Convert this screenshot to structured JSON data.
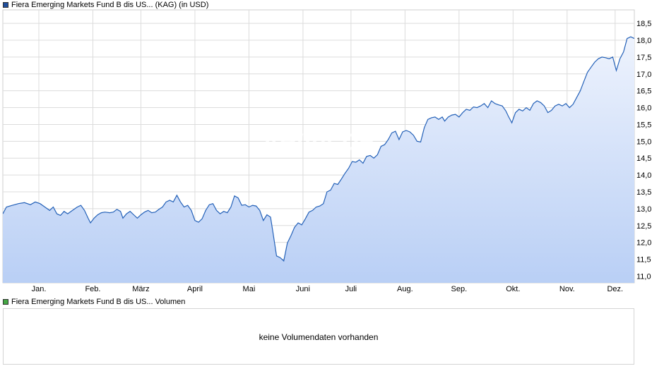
{
  "price_legend": {
    "label": "Fiera Emerging Markets Fund B dis US... (KAG) (in USD)",
    "color": "#1f4e9c"
  },
  "watermark": "ARIVA.DE",
  "volume_legend": {
    "label": "Fiera Emerging Markets Fund B dis US... Volumen",
    "color": "#45a845"
  },
  "volume_panel": {
    "message": "keine Volumendaten vorhanden"
  },
  "colors": {
    "line": "#2461b8",
    "fill_top": "#eef3fd",
    "fill_bottom": "#b9cff5",
    "grid": "#dcdcdc"
  },
  "chart_data": {
    "type": "area",
    "title": "Fiera Emerging Markets Fund B dis US... (KAG) (in USD)",
    "x_axis": {
      "tick_labels": [
        "Jan.",
        "Feb.",
        "März",
        "April",
        "Mai",
        "Juni",
        "Juli",
        "Aug.",
        "Sep.",
        "Okt.",
        "Nov.",
        "Dez."
      ],
      "tick_positions_week": [
        3,
        7.5,
        11.5,
        16,
        20.5,
        25,
        29,
        33.5,
        38,
        42.5,
        47,
        51
      ]
    },
    "y_axis": {
      "range": [
        10.8,
        18.9
      ],
      "ticks": [
        11.0,
        11.5,
        12.0,
        12.5,
        13.0,
        13.5,
        14.0,
        14.5,
        15.0,
        15.5,
        16.0,
        16.5,
        17.0,
        17.5,
        18.0,
        18.5
      ],
      "tick_labels": [
        "11,0",
        "11,5",
        "12,0",
        "12,5",
        "13,0",
        "13,5",
        "14,0",
        "14,5",
        "15,0",
        "15,5",
        "16,0",
        "16,5",
        "17,0",
        "17,5",
        "18,0",
        "18,5"
      ],
      "position": "right"
    },
    "x_range": [
      0,
      52.6
    ],
    "grid": true,
    "series": [
      {
        "values": [
          [
            0.0,
            12.85
          ],
          [
            0.3,
            13.05
          ],
          [
            0.8,
            13.1
          ],
          [
            1.3,
            13.15
          ],
          [
            1.8,
            13.18
          ],
          [
            2.3,
            13.12
          ],
          [
            2.7,
            13.2
          ],
          [
            3.1,
            13.15
          ],
          [
            3.5,
            13.05
          ],
          [
            3.9,
            12.95
          ],
          [
            4.2,
            13.05
          ],
          [
            4.5,
            12.85
          ],
          [
            4.8,
            12.8
          ],
          [
            5.1,
            12.92
          ],
          [
            5.4,
            12.85
          ],
          [
            5.8,
            12.95
          ],
          [
            6.2,
            13.05
          ],
          [
            6.5,
            13.1
          ],
          [
            6.8,
            12.95
          ],
          [
            7.1,
            12.72
          ],
          [
            7.3,
            12.58
          ],
          [
            7.6,
            12.72
          ],
          [
            7.9,
            12.82
          ],
          [
            8.2,
            12.88
          ],
          [
            8.5,
            12.9
          ],
          [
            8.9,
            12.88
          ],
          [
            9.2,
            12.9
          ],
          [
            9.5,
            12.98
          ],
          [
            9.8,
            12.92
          ],
          [
            10.0,
            12.72
          ],
          [
            10.3,
            12.85
          ],
          [
            10.6,
            12.92
          ],
          [
            10.9,
            12.82
          ],
          [
            11.2,
            12.72
          ],
          [
            11.5,
            12.82
          ],
          [
            11.8,
            12.9
          ],
          [
            12.1,
            12.95
          ],
          [
            12.4,
            12.88
          ],
          [
            12.7,
            12.9
          ],
          [
            13.0,
            12.98
          ],
          [
            13.3,
            13.05
          ],
          [
            13.6,
            13.2
          ],
          [
            13.9,
            13.25
          ],
          [
            14.2,
            13.2
          ],
          [
            14.5,
            13.4
          ],
          [
            14.8,
            13.2
          ],
          [
            15.1,
            13.05
          ],
          [
            15.4,
            13.1
          ],
          [
            15.7,
            12.95
          ],
          [
            16.0,
            12.65
          ],
          [
            16.3,
            12.6
          ],
          [
            16.6,
            12.7
          ],
          [
            16.9,
            12.95
          ],
          [
            17.2,
            13.12
          ],
          [
            17.5,
            13.15
          ],
          [
            17.8,
            12.95
          ],
          [
            18.1,
            12.85
          ],
          [
            18.4,
            12.92
          ],
          [
            18.7,
            12.88
          ],
          [
            19.0,
            13.05
          ],
          [
            19.3,
            13.38
          ],
          [
            19.6,
            13.32
          ],
          [
            19.9,
            13.1
          ],
          [
            20.2,
            13.12
          ],
          [
            20.5,
            13.05
          ],
          [
            20.8,
            13.1
          ],
          [
            21.1,
            13.08
          ],
          [
            21.4,
            12.95
          ],
          [
            21.7,
            12.65
          ],
          [
            22.0,
            12.82
          ],
          [
            22.3,
            12.75
          ],
          [
            22.5,
            12.3
          ],
          [
            22.8,
            11.6
          ],
          [
            23.1,
            11.55
          ],
          [
            23.4,
            11.45
          ],
          [
            23.7,
            11.98
          ],
          [
            24.0,
            12.2
          ],
          [
            24.3,
            12.45
          ],
          [
            24.6,
            12.58
          ],
          [
            24.9,
            12.52
          ],
          [
            25.2,
            12.7
          ],
          [
            25.5,
            12.9
          ],
          [
            25.8,
            12.95
          ],
          [
            26.1,
            13.05
          ],
          [
            26.4,
            13.08
          ],
          [
            26.7,
            13.15
          ],
          [
            27.0,
            13.5
          ],
          [
            27.3,
            13.55
          ],
          [
            27.6,
            13.75
          ],
          [
            27.9,
            13.72
          ],
          [
            28.2,
            13.88
          ],
          [
            28.5,
            14.05
          ],
          [
            28.8,
            14.2
          ],
          [
            29.1,
            14.4
          ],
          [
            29.4,
            14.38
          ],
          [
            29.7,
            14.45
          ],
          [
            30.0,
            14.35
          ],
          [
            30.3,
            14.55
          ],
          [
            30.6,
            14.58
          ],
          [
            30.9,
            14.5
          ],
          [
            31.2,
            14.6
          ],
          [
            31.5,
            14.85
          ],
          [
            31.8,
            14.9
          ],
          [
            32.1,
            15.05
          ],
          [
            32.4,
            15.25
          ],
          [
            32.7,
            15.3
          ],
          [
            33.0,
            15.05
          ],
          [
            33.3,
            15.28
          ],
          [
            33.6,
            15.32
          ],
          [
            33.9,
            15.28
          ],
          [
            34.2,
            15.18
          ],
          [
            34.5,
            15.0
          ],
          [
            34.8,
            14.98
          ],
          [
            35.1,
            15.4
          ],
          [
            35.4,
            15.65
          ],
          [
            35.7,
            15.7
          ],
          [
            36.0,
            15.72
          ],
          [
            36.3,
            15.65
          ],
          [
            36.6,
            15.72
          ],
          [
            36.8,
            15.6
          ],
          [
            37.1,
            15.72
          ],
          [
            37.4,
            15.78
          ],
          [
            37.7,
            15.8
          ],
          [
            38.0,
            15.72
          ],
          [
            38.3,
            15.85
          ],
          [
            38.6,
            15.95
          ],
          [
            38.9,
            15.92
          ],
          [
            39.2,
            16.02
          ],
          [
            39.5,
            16.0
          ],
          [
            39.8,
            16.05
          ],
          [
            40.1,
            16.12
          ],
          [
            40.4,
            16.0
          ],
          [
            40.7,
            16.2
          ],
          [
            41.0,
            16.12
          ],
          [
            41.3,
            16.08
          ],
          [
            41.6,
            16.05
          ],
          [
            41.9,
            15.9
          ],
          [
            42.1,
            15.75
          ],
          [
            42.4,
            15.55
          ],
          [
            42.7,
            15.85
          ],
          [
            43.0,
            15.95
          ],
          [
            43.3,
            15.9
          ],
          [
            43.6,
            16.0
          ],
          [
            43.9,
            15.92
          ],
          [
            44.2,
            16.12
          ],
          [
            44.5,
            16.2
          ],
          [
            44.8,
            16.15
          ],
          [
            45.1,
            16.05
          ],
          [
            45.4,
            15.85
          ],
          [
            45.7,
            15.92
          ],
          [
            46.0,
            16.05
          ],
          [
            46.3,
            16.1
          ],
          [
            46.6,
            16.05
          ],
          [
            46.9,
            16.12
          ],
          [
            47.2,
            16.0
          ],
          [
            47.5,
            16.1
          ],
          [
            47.8,
            16.3
          ],
          [
            48.1,
            16.5
          ],
          [
            48.4,
            16.78
          ],
          [
            48.7,
            17.05
          ],
          [
            49.0,
            17.2
          ],
          [
            49.3,
            17.35
          ],
          [
            49.6,
            17.45
          ],
          [
            49.9,
            17.5
          ],
          [
            50.2,
            17.48
          ],
          [
            50.5,
            17.45
          ],
          [
            50.8,
            17.5
          ],
          [
            51.1,
            17.1
          ],
          [
            51.4,
            17.45
          ],
          [
            51.7,
            17.65
          ],
          [
            52.0,
            18.05
          ],
          [
            52.3,
            18.1
          ],
          [
            52.6,
            18.05
          ]
        ]
      }
    ]
  }
}
